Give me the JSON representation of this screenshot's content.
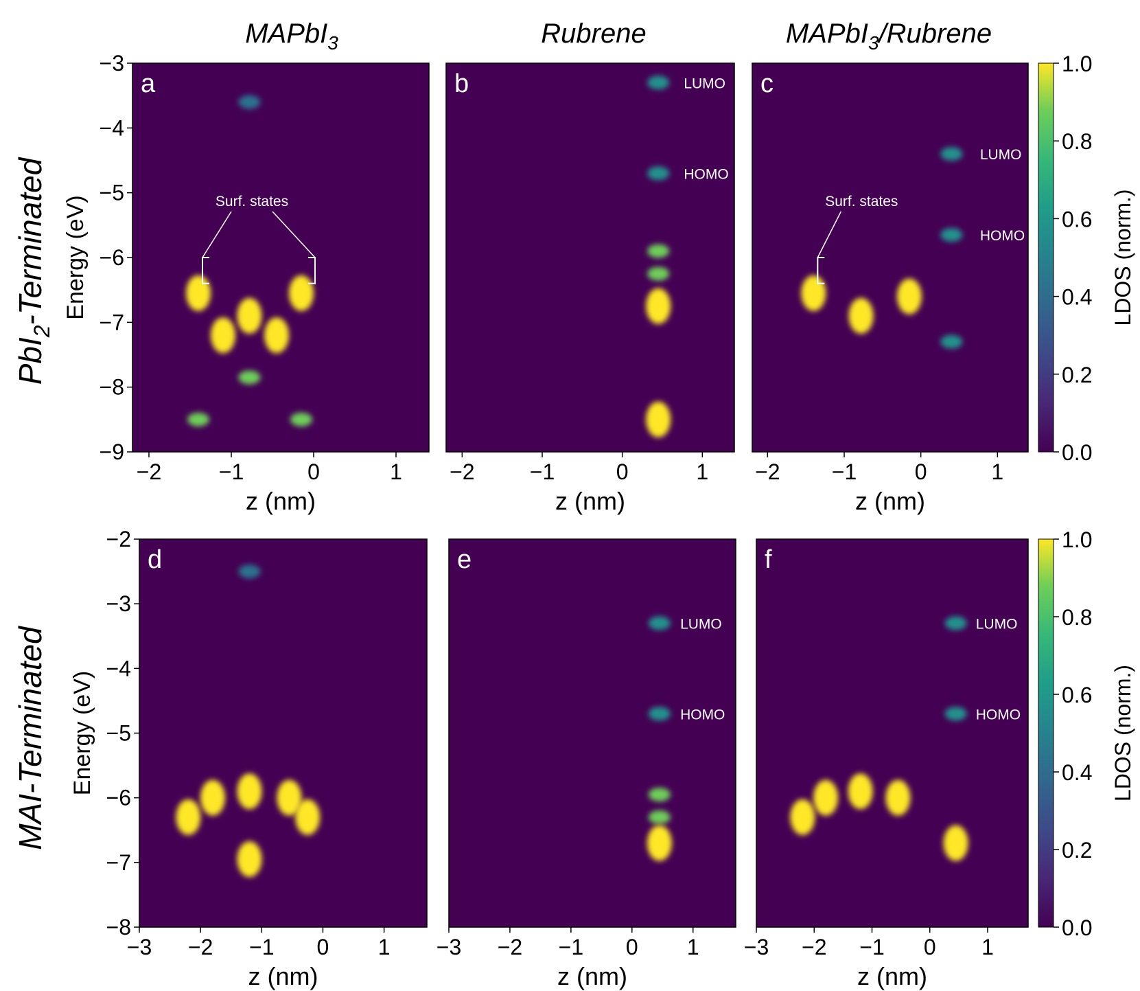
{
  "colors": {
    "background": "#440154",
    "low": "#440154",
    "mid": "#21918c",
    "high": "#fde725"
  },
  "row_labels": {
    "top": "PbI",
    "top_sub": "2",
    "top_rest": "-Terminated",
    "bottom": "MAI-Terminated"
  },
  "column_titles": {
    "c1": "MAPbI",
    "c1_sub": "3",
    "c2": "Rubrene",
    "c3a": "MAPbI",
    "c3_sub": "3",
    "c3b": "/Rubrene"
  },
  "chart_data": [
    {
      "type": "heatmap",
      "panel": "a",
      "xlabel": "z (nm)",
      "ylabel": "Energy (eV)",
      "xlim": [
        -2.2,
        1.4
      ],
      "ylim": [
        -9,
        -3
      ],
      "xticks": [
        -2,
        -1,
        0,
        1
      ],
      "yticks": [
        -3,
        -4,
        -5,
        -6,
        -7,
        -8,
        -9
      ],
      "annotations": [
        {
          "text": "Surf. states",
          "z": [
            -1.4,
            -0.1
          ],
          "energy": [
            -6.0,
            -6.4
          ]
        }
      ],
      "features": [
        {
          "z": -1.4,
          "energy": -6.55,
          "intensity": 1.0
        },
        {
          "z": -0.15,
          "energy": -6.55,
          "intensity": 1.0
        },
        {
          "z": -0.78,
          "energy": -6.9,
          "intensity": 1.0
        },
        {
          "z": -1.1,
          "energy": -7.2,
          "intensity": 0.9
        },
        {
          "z": -0.45,
          "energy": -7.2,
          "intensity": 0.9
        },
        {
          "z": -0.78,
          "energy": -7.85,
          "intensity": 0.7
        },
        {
          "z": -1.4,
          "energy": -8.5,
          "intensity": 0.7
        },
        {
          "z": -0.15,
          "energy": -8.5,
          "intensity": 0.7
        },
        {
          "z": -0.78,
          "energy": -3.6,
          "intensity": 0.35
        }
      ]
    },
    {
      "type": "heatmap",
      "panel": "b",
      "xlabel": "z (nm)",
      "ylabel": "",
      "xlim": [
        -2.2,
        1.4
      ],
      "ylim": [
        -9,
        -3
      ],
      "xticks": [
        -2,
        -1,
        0,
        1
      ],
      "yticks": [],
      "annotations": [
        {
          "text": "LUMO",
          "energy": -3.3
        },
        {
          "text": "HOMO",
          "energy": -4.7
        }
      ],
      "features": [
        {
          "z": 0.45,
          "energy": -3.3,
          "intensity": 0.45
        },
        {
          "z": 0.45,
          "energy": -4.7,
          "intensity": 0.45
        },
        {
          "z": 0.45,
          "energy": -5.9,
          "intensity": 0.8
        },
        {
          "z": 0.45,
          "energy": -6.25,
          "intensity": 0.8
        },
        {
          "z": 0.45,
          "energy": -6.75,
          "intensity": 1.0
        },
        {
          "z": 0.45,
          "energy": -8.5,
          "intensity": 1.0
        }
      ]
    },
    {
      "type": "heatmap",
      "panel": "c",
      "xlabel": "z (nm)",
      "ylabel": "",
      "xlim": [
        -2.2,
        1.4
      ],
      "ylim": [
        -9,
        -3
      ],
      "xticks": [
        -2,
        -1,
        0,
        1
      ],
      "yticks": [],
      "colorbar": {
        "label": "LDOS (norm.)",
        "ticks": [
          0.0,
          0.2,
          0.4,
          0.6,
          0.8,
          1.0
        ],
        "tick_labels": [
          "0.0",
          "0.2",
          "0.4",
          "0.6",
          "0.8",
          "1.0"
        ]
      },
      "annotations": [
        {
          "text": "Surf. states",
          "z": [
            -1.4
          ],
          "energy": [
            -6.0,
            -6.4
          ]
        },
        {
          "text": "LUMO",
          "energy": -4.4
        },
        {
          "text": "HOMO",
          "energy": -5.65
        }
      ],
      "features": [
        {
          "z": -1.4,
          "energy": -6.55,
          "intensity": 1.0
        },
        {
          "z": -0.15,
          "energy": -6.6,
          "intensity": 1.0
        },
        {
          "z": -0.78,
          "energy": -6.9,
          "intensity": 1.0
        },
        {
          "z": 0.4,
          "energy": -4.4,
          "intensity": 0.45
        },
        {
          "z": 0.4,
          "energy": -5.65,
          "intensity": 0.45
        },
        {
          "z": 0.4,
          "energy": -7.3,
          "intensity": 0.5
        }
      ]
    },
    {
      "type": "heatmap",
      "panel": "d",
      "xlabel": "z (nm)",
      "ylabel": "Energy (eV)",
      "xlim": [
        -3.0,
        1.7
      ],
      "ylim": [
        -8,
        -2
      ],
      "xticks": [
        -3,
        -2,
        -1,
        0,
        1
      ],
      "yticks": [
        -2,
        -3,
        -4,
        -5,
        -6,
        -7,
        -8
      ],
      "annotations": [],
      "features": [
        {
          "z": -1.2,
          "energy": -5.9,
          "intensity": 1.0
        },
        {
          "z": -1.8,
          "energy": -6.0,
          "intensity": 1.0
        },
        {
          "z": -0.55,
          "energy": -6.0,
          "intensity": 1.0
        },
        {
          "z": -2.2,
          "energy": -6.3,
          "intensity": 1.0
        },
        {
          "z": -0.25,
          "energy": -6.3,
          "intensity": 1.0
        },
        {
          "z": -1.2,
          "energy": -6.95,
          "intensity": 0.9
        },
        {
          "z": -1.2,
          "energy": -2.5,
          "intensity": 0.35
        }
      ]
    },
    {
      "type": "heatmap",
      "panel": "e",
      "xlabel": "z (nm)",
      "ylabel": "",
      "xlim": [
        -3.0,
        1.7
      ],
      "ylim": [
        -8,
        -2
      ],
      "xticks": [
        -3,
        -2,
        -1,
        0,
        1
      ],
      "yticks": [],
      "annotations": [
        {
          "text": "LUMO",
          "energy": -3.3
        },
        {
          "text": "HOMO",
          "energy": -4.7
        }
      ],
      "features": [
        {
          "z": 0.45,
          "energy": -3.3,
          "intensity": 0.45
        },
        {
          "z": 0.45,
          "energy": -4.7,
          "intensity": 0.45
        },
        {
          "z": 0.45,
          "energy": -5.95,
          "intensity": 0.8
        },
        {
          "z": 0.45,
          "energy": -6.3,
          "intensity": 0.7
        },
        {
          "z": 0.45,
          "energy": -6.7,
          "intensity": 1.0
        }
      ]
    },
    {
      "type": "heatmap",
      "panel": "f",
      "xlabel": "z (nm)",
      "ylabel": "",
      "xlim": [
        -3.0,
        1.7
      ],
      "ylim": [
        -8,
        -2
      ],
      "xticks": [
        -3,
        -2,
        -1,
        0,
        1
      ],
      "yticks": [],
      "colorbar": {
        "label": "LDOS (norm.)",
        "ticks": [
          0.0,
          0.2,
          0.4,
          0.6,
          0.8,
          1.0
        ],
        "tick_labels": [
          "0.0",
          "0.2",
          "0.4",
          "0.6",
          "0.8",
          "1.0"
        ]
      },
      "annotations": [
        {
          "text": "LUMO",
          "energy": -3.3
        },
        {
          "text": "HOMO",
          "energy": -4.7
        }
      ],
      "features": [
        {
          "z": -1.2,
          "energy": -5.9,
          "intensity": 1.0
        },
        {
          "z": -1.8,
          "energy": -6.0,
          "intensity": 1.0
        },
        {
          "z": -0.55,
          "energy": -6.0,
          "intensity": 1.0
        },
        {
          "z": -2.2,
          "energy": -6.3,
          "intensity": 1.0
        },
        {
          "z": 0.45,
          "energy": -6.7,
          "intensity": 1.0
        },
        {
          "z": 0.45,
          "energy": -3.3,
          "intensity": 0.45
        },
        {
          "z": 0.45,
          "energy": -4.7,
          "intensity": 0.45
        }
      ]
    }
  ]
}
